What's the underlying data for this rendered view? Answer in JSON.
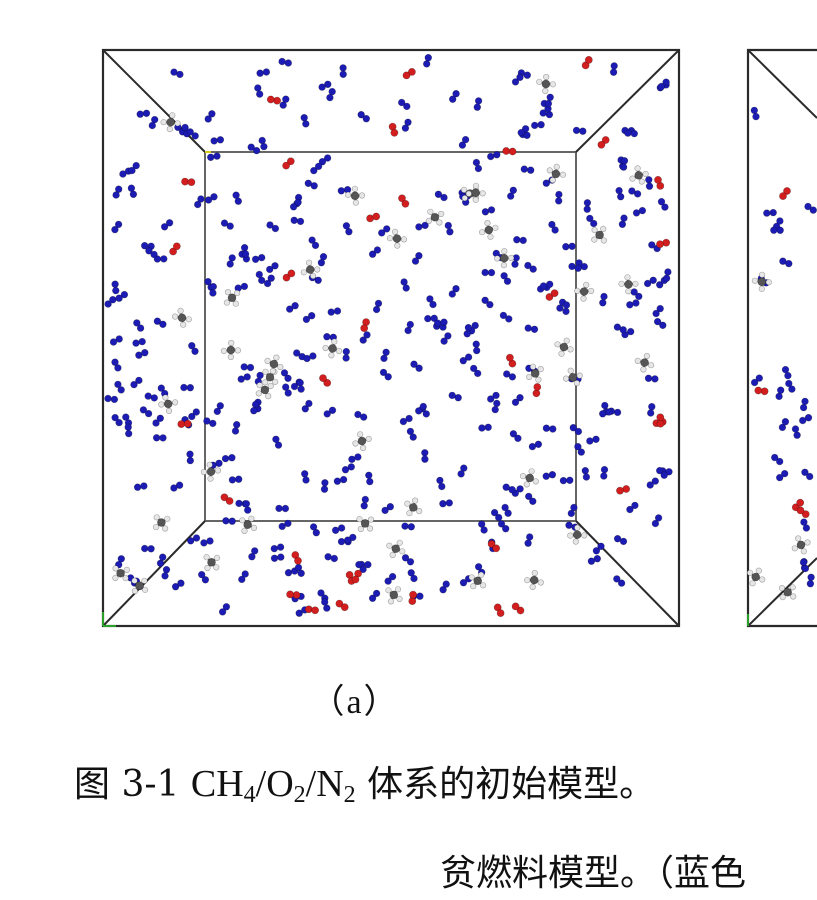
{
  "figure": {
    "panel_a_label": "（a）",
    "colors": {
      "nitrogen": "#1c1cb4",
      "oxygen": "#d21e1e",
      "carbon": "#555555",
      "hydrogen": "#e6e6e6",
      "box_edge": "#2a2a2a"
    }
  },
  "caption": {
    "prefix": "图 3-1 ",
    "formula_parts": [
      "CH",
      "4",
      "/O",
      "2",
      "/N",
      "2"
    ],
    "suffix": " 体系的初始模型。",
    "line2": "贫燃料模型。（蓝色"
  }
}
